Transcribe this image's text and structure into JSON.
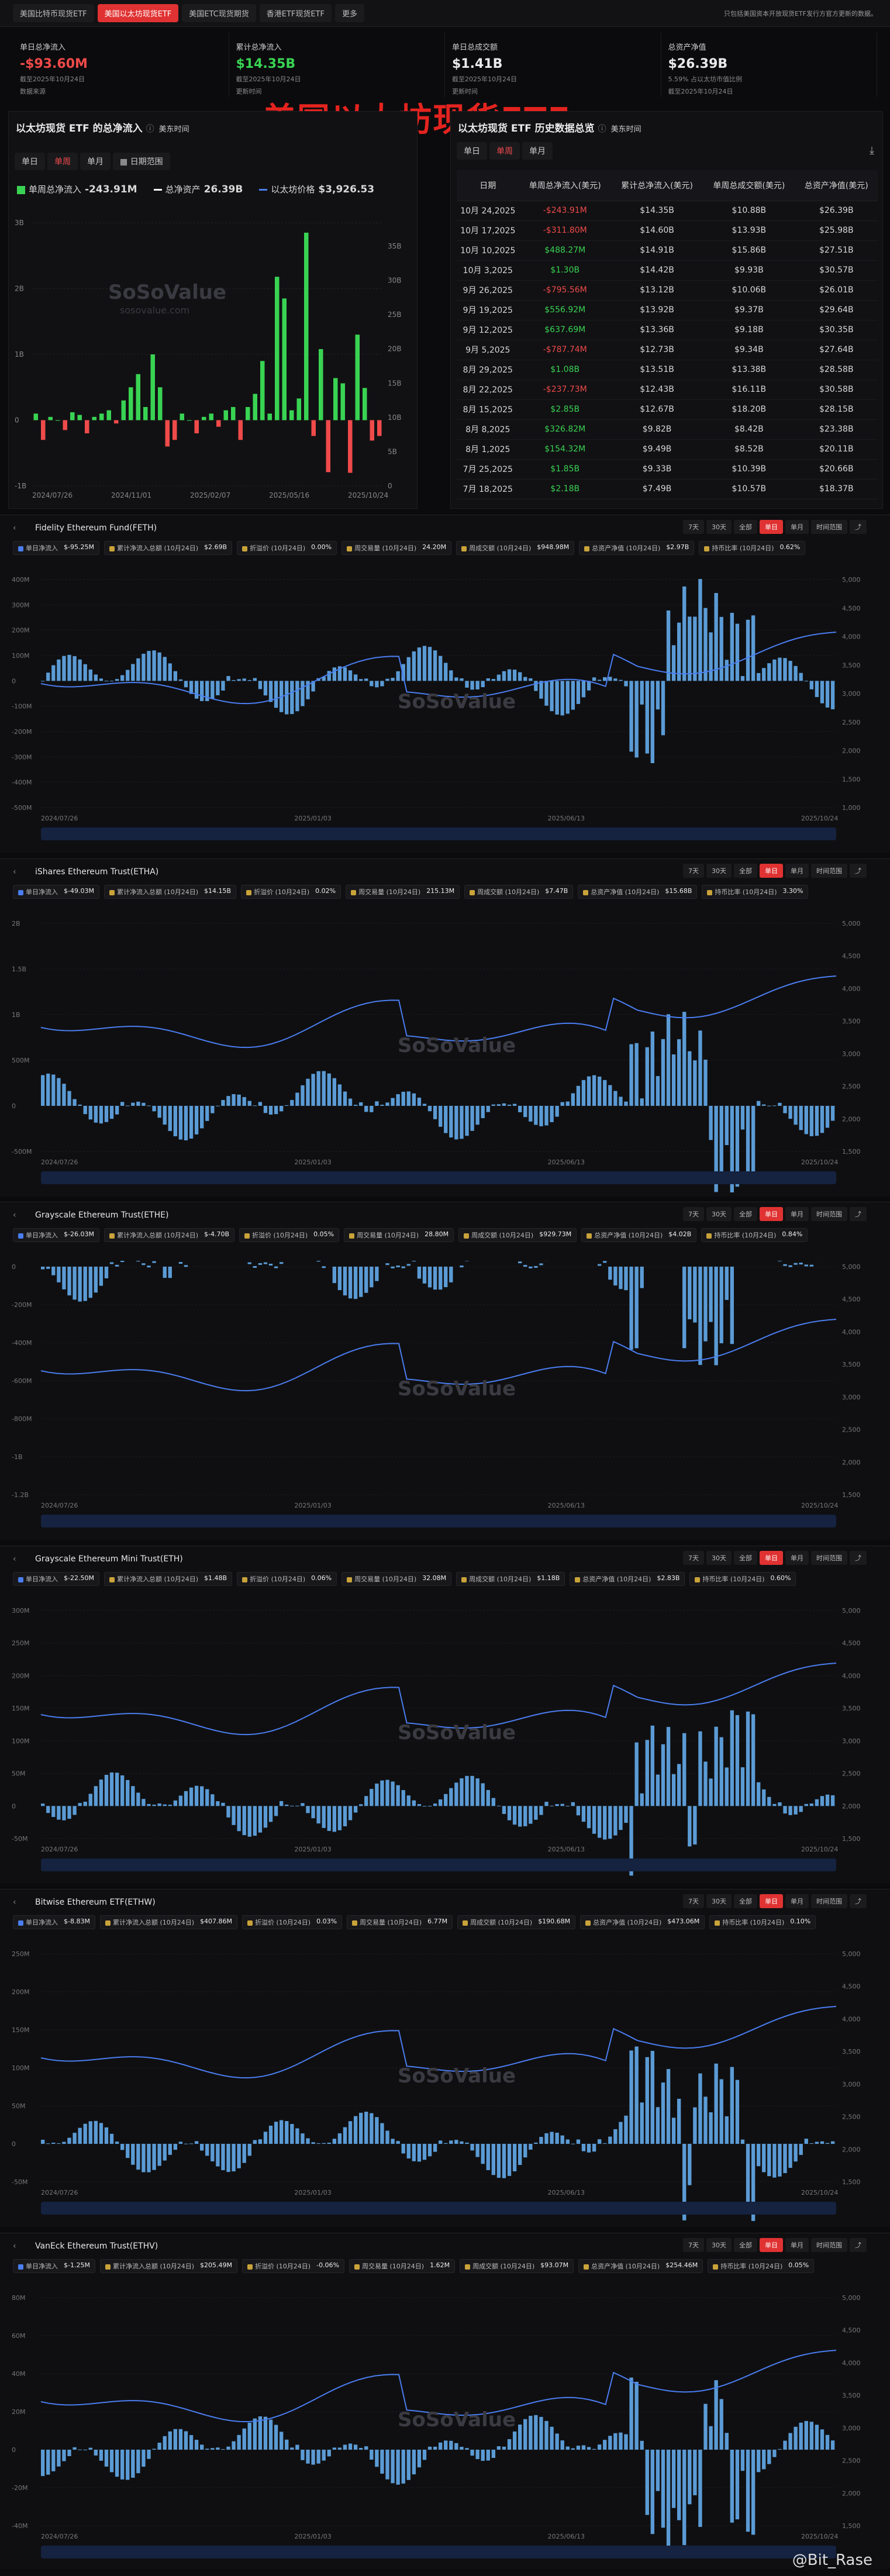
{
  "nav": {
    "tabs": [
      "美国比特币现货ETF",
      "美国以太坊现货ETF",
      "美国ETC现货期货",
      "香港ETF现货ETF",
      "更多"
    ],
    "active": 1,
    "note": "只包括美国资本开放现货ETF发行方官方更新的数据。"
  },
  "stats": [
    {
      "label": "单日总净流入",
      "value": "-$93.60M",
      "sub1": "截至2025年10月24日",
      "sub2": "数据来源"
    },
    {
      "label": "累计总净流入",
      "value": "$14.35B",
      "sub1": "截至2025年10月24日",
      "sub2": "更新时间"
    },
    {
      "label": "单日总成交额",
      "value": "$1.41B",
      "sub1": "截至2025年10月24日",
      "sub2": "更新时间"
    },
    {
      "label": "总资产净值",
      "value": "$26.39B",
      "sub1": "5.59% 占以太坊市值比例",
      "sub2": "截至2025年10月24日"
    }
  ],
  "banner": "美国以太坊现货ETF",
  "left_panel": {
    "title": "以太坊现货 ETF 的总净流入",
    "tz": "美东时间",
    "buttons": [
      "单日",
      "单周",
      "单月"
    ],
    "date_btn": "日期范围",
    "legend": [
      {
        "label": "单周总净流入",
        "value": "-243.91M",
        "color": "#39d353"
      },
      {
        "label": "总净资产",
        "value": "26.39B",
        "color": "#ffffff"
      },
      {
        "label": "以太坊价格",
        "value": "$3,926.53",
        "color": "#4a7df0"
      }
    ],
    "watermark": "SoSoValue",
    "watermark_sub": "sosovalue.com"
  },
  "right_panel": {
    "title": "以太坊现货 ETF 历史数据总览",
    "tz": "美东时间",
    "buttons": [
      "单日",
      "单周",
      "单月"
    ],
    "columns": [
      "日期",
      "单周总净流入(美元)",
      "累计总净流入(美元)",
      "单周总成交额(美元)",
      "总资产净值(美元)"
    ],
    "rows": [
      [
        "10月 24,2025",
        "-$243.91M",
        "$14.35B",
        "$10.88B",
        "$26.39B"
      ],
      [
        "10月 17,2025",
        "-$311.80M",
        "$14.60B",
        "$13.93B",
        "$25.98B"
      ],
      [
        "10月 10,2025",
        "$488.27M",
        "$14.91B",
        "$15.86B",
        "$27.51B"
      ],
      [
        "10月 3,2025",
        "$1.30B",
        "$14.42B",
        "$9.93B",
        "$30.57B"
      ],
      [
        "9月 26,2025",
        "-$795.56M",
        "$13.12B",
        "$10.06B",
        "$26.01B"
      ],
      [
        "9月 19,2025",
        "$556.92M",
        "$13.92B",
        "$9.37B",
        "$29.64B"
      ],
      [
        "9月 12,2025",
        "$637.69M",
        "$13.36B",
        "$9.18B",
        "$30.35B"
      ],
      [
        "9月 5,2025",
        "-$787.74M",
        "$12.73B",
        "$9.34B",
        "$27.64B"
      ],
      [
        "8月 29,2025",
        "$1.08B",
        "$13.51B",
        "$13.38B",
        "$28.58B"
      ],
      [
        "8月 22,2025",
        "-$237.73M",
        "$12.43B",
        "$16.11B",
        "$30.58B"
      ],
      [
        "8月 15,2025",
        "$2.85B",
        "$12.67B",
        "$18.20B",
        "$28.15B"
      ],
      [
        "8月 8,2025",
        "$326.82M",
        "$9.82B",
        "$8.42B",
        "$23.38B"
      ],
      [
        "8月 1,2025",
        "$154.32M",
        "$9.49B",
        "$8.52B",
        "$20.11B"
      ],
      [
        "7月 25,2025",
        "$1.85B",
        "$9.33B",
        "$10.39B",
        "$20.66B"
      ],
      [
        "7月 18,2025",
        "$2.18B",
        "$7.49B",
        "$10.57B",
        "$18.37B"
      ]
    ]
  },
  "funds": [
    {
      "name": "Fidelity Ethereum Fund(FETH)",
      "chips": [
        [
          "单日净流入",
          "$-95.25M"
        ],
        [
          "累计净流入总额 (10月24日)",
          "$2.69B"
        ],
        [
          "折溢价 (10月24日)",
          "0.00%"
        ],
        [
          "周交易量 (10月24日)",
          "24.20M"
        ],
        [
          "周成交额 (10月24日)",
          "$948.98M"
        ],
        [
          "总资产净值 (10月24日)",
          "$2.97B"
        ],
        [
          "持币比率 (10月24日)",
          "0.62%"
        ]
      ],
      "yl": [
        "400M",
        "300M",
        "200M",
        "100M",
        "0",
        "-100M",
        "-200M",
        "-300M",
        "-400M",
        "-500M"
      ],
      "yr": [
        "5,000",
        "4,500",
        "4,000",
        "3,500",
        "3,000",
        "2,500",
        "2,000",
        "1,500",
        "1,000"
      ],
      "xl": [
        "2024/07/26",
        "2025/01/03",
        "2025/06/13",
        "2025/10/24"
      ]
    },
    {
      "name": "iShares Ethereum Trust(ETHA)",
      "chips": [
        [
          "单日净流入",
          "$-49.03M"
        ],
        [
          "累计净流入总额 (10月24日)",
          "$14.15B"
        ],
        [
          "折溢价 (10月24日)",
          "0.02%"
        ],
        [
          "周交易量 (10月24日)",
          "215.13M"
        ],
        [
          "周成交额 (10月24日)",
          "$7.47B"
        ],
        [
          "总资产净值 (10月24日)",
          "$15.68B"
        ],
        [
          "持币比率 (10月24日)",
          "3.30%"
        ]
      ],
      "yl": [
        "2B",
        "1.5B",
        "1B",
        "500M",
        "0",
        "-500M"
      ],
      "yr": [
        "5,000",
        "4,500",
        "4,000",
        "3,500",
        "3,000",
        "2,500",
        "2,000",
        "1,500"
      ],
      "xl": [
        "2024/07/26",
        "2025/01/03",
        "2025/06/13",
        "2025/10/24"
      ]
    },
    {
      "name": "Grayscale Ethereum Trust(ETHE)",
      "chips": [
        [
          "单日净流入",
          "$-26.03M"
        ],
        [
          "累计净流入总额 (10月24日)",
          "$-4.70B"
        ],
        [
          "折溢价 (10月24日)",
          "0.05%"
        ],
        [
          "周交易量 (10月24日)",
          "28.80M"
        ],
        [
          "周成交额 (10月24日)",
          "$929.73M"
        ],
        [
          "总资产净值 (10月24日)",
          "$4.02B"
        ],
        [
          "持币比率 (10月24日)",
          "0.84%"
        ]
      ],
      "yl": [
        "0",
        "-200M",
        "-400M",
        "-600M",
        "-800M",
        "-1B",
        "-1.2B"
      ],
      "yr": [
        "5,000",
        "4,500",
        "4,000",
        "3,500",
        "3,000",
        "2,500",
        "2,000",
        "1,500"
      ],
      "xl": [
        "2024/07/26",
        "2025/01/03",
        "2025/06/13",
        "2025/10/24"
      ]
    },
    {
      "name": "Grayscale Ethereum Mini Trust(ETH)",
      "chips": [
        [
          "单日净流入",
          "$-22.50M"
        ],
        [
          "累计净流入总额 (10月24日)",
          "$1.48B"
        ],
        [
          "折溢价 (10月24日)",
          "0.06%"
        ],
        [
          "周交易量 (10月24日)",
          "32.08M"
        ],
        [
          "周成交额 (10月24日)",
          "$1.18B"
        ],
        [
          "总资产净值 (10月24日)",
          "$2.83B"
        ],
        [
          "持币比率 (10月24日)",
          "0.60%"
        ]
      ],
      "yl": [
        "300M",
        "250M",
        "200M",
        "150M",
        "100M",
        "50M",
        "0",
        "-50M"
      ],
      "yr": [
        "5,000",
        "4,500",
        "4,000",
        "3,500",
        "3,000",
        "2,500",
        "2,000",
        "1,500"
      ],
      "xl": [
        "2024/07/26",
        "2025/01/03",
        "2025/06/13",
        "2025/10/24"
      ]
    },
    {
      "name": "Bitwise Ethereum ETF(ETHW)",
      "chips": [
        [
          "单日净流入",
          "$-8.83M"
        ],
        [
          "累计净流入总额 (10月24日)",
          "$407.86M"
        ],
        [
          "折溢价 (10月24日)",
          "0.03%"
        ],
        [
          "周交易量 (10月24日)",
          "6.77M"
        ],
        [
          "周成交额 (10月24日)",
          "$190.68M"
        ],
        [
          "总资产净值 (10月24日)",
          "$473.06M"
        ],
        [
          "持币比率 (10月24日)",
          "0.10%"
        ]
      ],
      "yl": [
        "250M",
        "200M",
        "150M",
        "100M",
        "50M",
        "0",
        "-50M"
      ],
      "yr": [
        "5,000",
        "4,500",
        "4,000",
        "3,500",
        "3,000",
        "2,500",
        "2,000",
        "1,500"
      ],
      "xl": [
        "2024/07/26",
        "2025/01/03",
        "2025/06/13",
        "2025/10/24"
      ]
    },
    {
      "name": "VanEck Ethereum Trust(ETHV)",
      "chips": [
        [
          "单日净流入",
          "$-1.25M"
        ],
        [
          "累计净流入总额 (10月24日)",
          "$205.49M"
        ],
        [
          "折溢价 (10月24日)",
          "-0.06%"
        ],
        [
          "周交易量 (10月24日)",
          "1.62M"
        ],
        [
          "周成交额 (10月24日)",
          "$93.07M"
        ],
        [
          "总资产净值 (10月24日)",
          "$254.46M"
        ],
        [
          "持币比率 (10月24日)",
          "0.05%"
        ]
      ],
      "yl": [
        "80M",
        "60M",
        "40M",
        "20M",
        "0",
        "-20M",
        "-40M"
      ],
      "yr": [
        "5,000",
        "4,500",
        "4,000",
        "3,500",
        "3,000",
        "2,500",
        "2,000",
        "1,500"
      ],
      "xl": [
        "2024/07/26",
        "2025/01/03",
        "2025/06/13",
        "2025/10/24"
      ]
    }
  ],
  "ranges": [
    "7天",
    "30天",
    "全部",
    "单日",
    "单月",
    "时间范围"
  ],
  "footer": "@Bit_Rase",
  "chart_data": {
    "type": "bar",
    "title": "以太坊现货 ETF 的总净流入",
    "x_ticks": [
      "2024/07/26",
      "2024/11/01",
      "2025/02/07",
      "2025/05/16",
      "2025/10/24"
    ],
    "y_left": [
      "3B",
      "2B",
      "1B",
      "0",
      "-1B"
    ],
    "y_right": [
      "35B",
      "30B",
      "25B",
      "20B",
      "15B",
      "10B",
      "5B",
      "0"
    ],
    "series": [
      {
        "name": "单周总净流入",
        "values": [
          0.1,
          -0.3,
          0.05,
          0.0,
          -0.15,
          0.12,
          0.08,
          -0.2,
          0.05,
          0.1,
          0.15,
          -0.05,
          0.3,
          0.5,
          0.7,
          0.2,
          1.0,
          0.5,
          -0.4,
          -0.3,
          0.1,
          0.0,
          -0.2,
          0.05,
          0.1,
          -0.1,
          0.15,
          0.2,
          -0.3,
          0.2,
          0.4,
          0.9,
          0.1,
          2.18,
          1.85,
          0.15,
          0.33,
          2.85,
          -0.24,
          1.08,
          -0.79,
          0.64,
          0.56,
          -0.8,
          1.3,
          0.49,
          -0.31,
          -0.24
        ]
      }
    ]
  }
}
